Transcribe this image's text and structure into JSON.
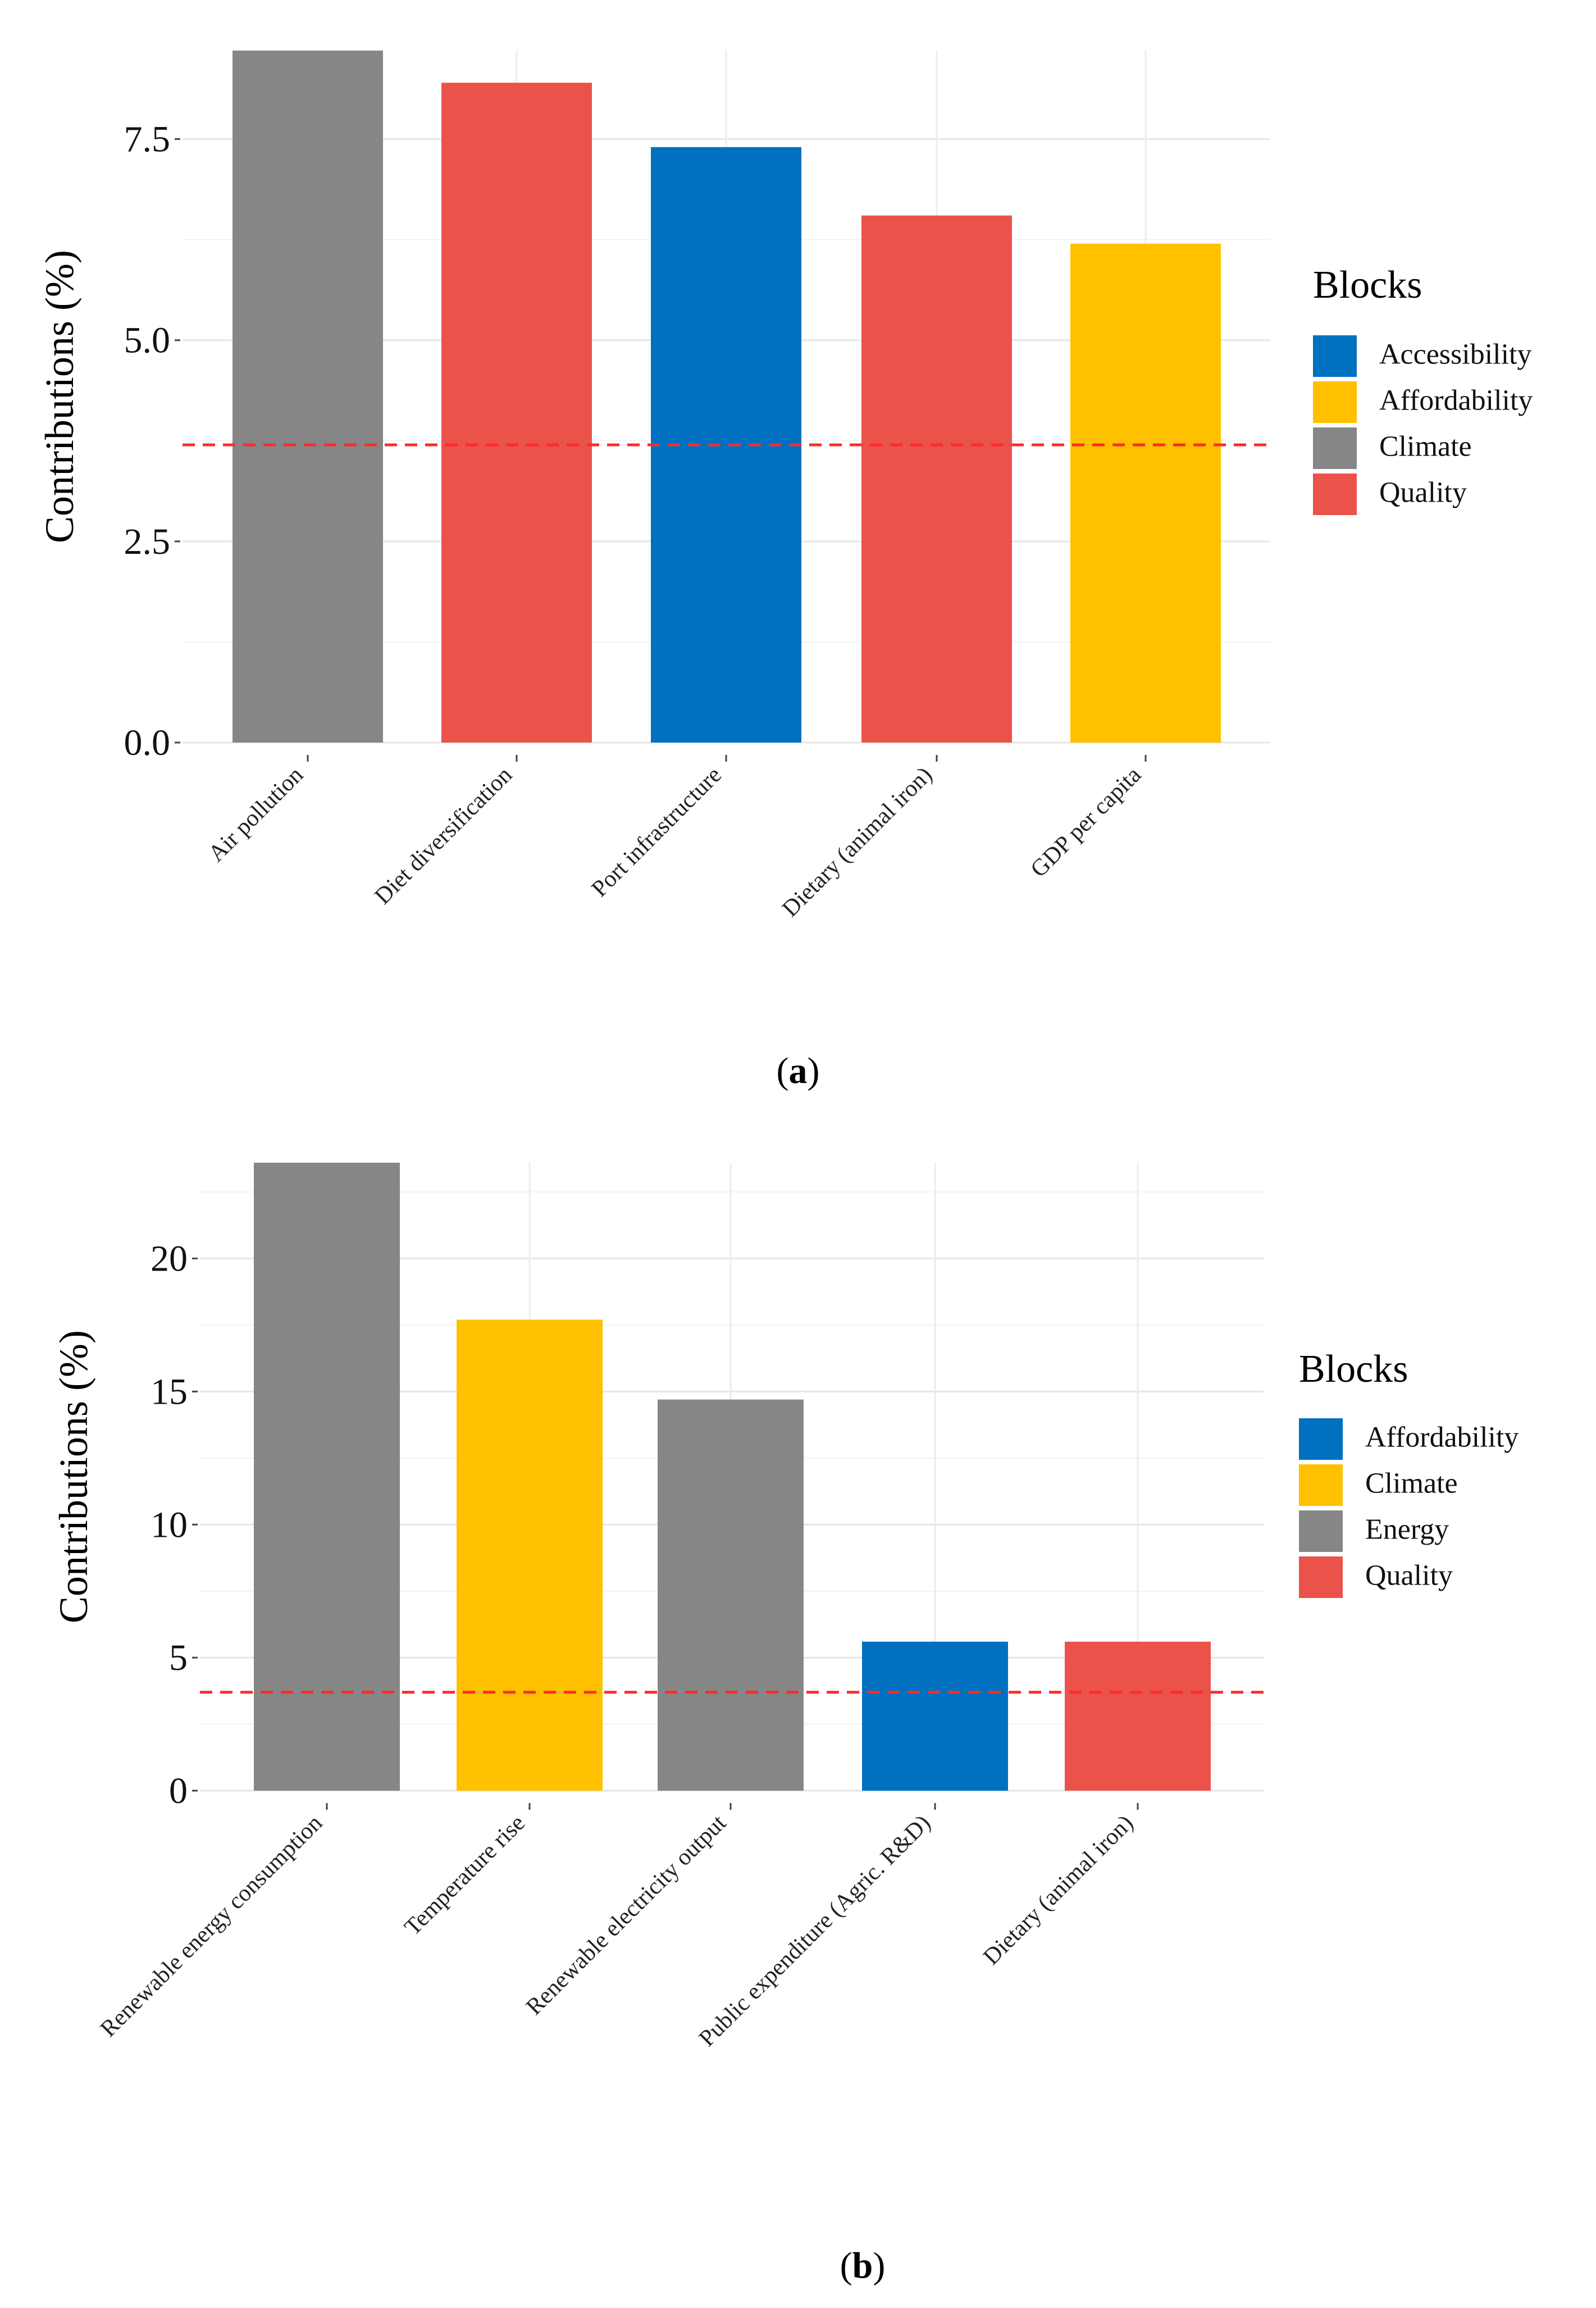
{
  "chart_data": [
    {
      "type": "bar",
      "panel_label": "a",
      "title": "",
      "xlabel": "",
      "ylabel": "Contributions (%)",
      "ylim": [
        0,
        8.6
      ],
      "yticks": [
        0.0,
        2.5,
        5.0,
        7.5
      ],
      "ytick_labels": [
        "0.0",
        "2.5",
        "5.0",
        "7.5"
      ],
      "grid": true,
      "reference_line": 3.7,
      "reference_color": "#ff2a2a",
      "categories": [
        "Air pollution",
        "Diet diversification",
        "Port infrastructure",
        "Dietary (animal iron)",
        "GDP per capita"
      ],
      "values": [
        8.6,
        8.2,
        7.4,
        6.55,
        6.2
      ],
      "blocks": [
        "Climate",
        "Quality",
        "Accessibility",
        "Quality",
        "Affordability"
      ],
      "legend": {
        "title": "Blocks",
        "position": "right",
        "entries": [
          {
            "label": "Accessibility",
            "color": "#0070c0"
          },
          {
            "label": "Affordability",
            "color": "#ffc000"
          },
          {
            "label": "Climate",
            "color": "#868686"
          },
          {
            "label": "Quality",
            "color": "#eb524a"
          }
        ]
      },
      "block_colors": {
        "Accessibility": "#0070c0",
        "Affordability": "#ffc000",
        "Climate": "#868686",
        "Quality": "#eb524a"
      }
    },
    {
      "type": "bar",
      "panel_label": "b",
      "title": "",
      "xlabel": "",
      "ylabel": "Contributions (%)",
      "ylim": [
        0,
        23.6
      ],
      "yticks": [
        0,
        5,
        10,
        15,
        20
      ],
      "ytick_labels": [
        "0",
        "5",
        "10",
        "15",
        "20"
      ],
      "grid": true,
      "reference_line": 3.7,
      "reference_color": "#ff2a2a",
      "categories": [
        "Renewable energy consumption",
        "Temperature rise",
        "Renewable electricity output",
        "Public expenditure (Agric. R&D)",
        "Dietary (animal iron)"
      ],
      "values": [
        23.6,
        17.7,
        14.7,
        5.6,
        5.6
      ],
      "blocks": [
        "Energy",
        "Climate",
        "Energy",
        "Affordability",
        "Quality"
      ],
      "legend": {
        "title": "Blocks",
        "position": "right",
        "entries": [
          {
            "label": "Affordability",
            "color": "#0070c0"
          },
          {
            "label": "Climate",
            "color": "#ffc000"
          },
          {
            "label": "Energy",
            "color": "#868686"
          },
          {
            "label": "Quality",
            "color": "#eb524a"
          }
        ]
      },
      "block_colors": {
        "Affordability": "#0070c0",
        "Climate": "#ffc000",
        "Energy": "#868686",
        "Quality": "#eb524a"
      }
    }
  ]
}
